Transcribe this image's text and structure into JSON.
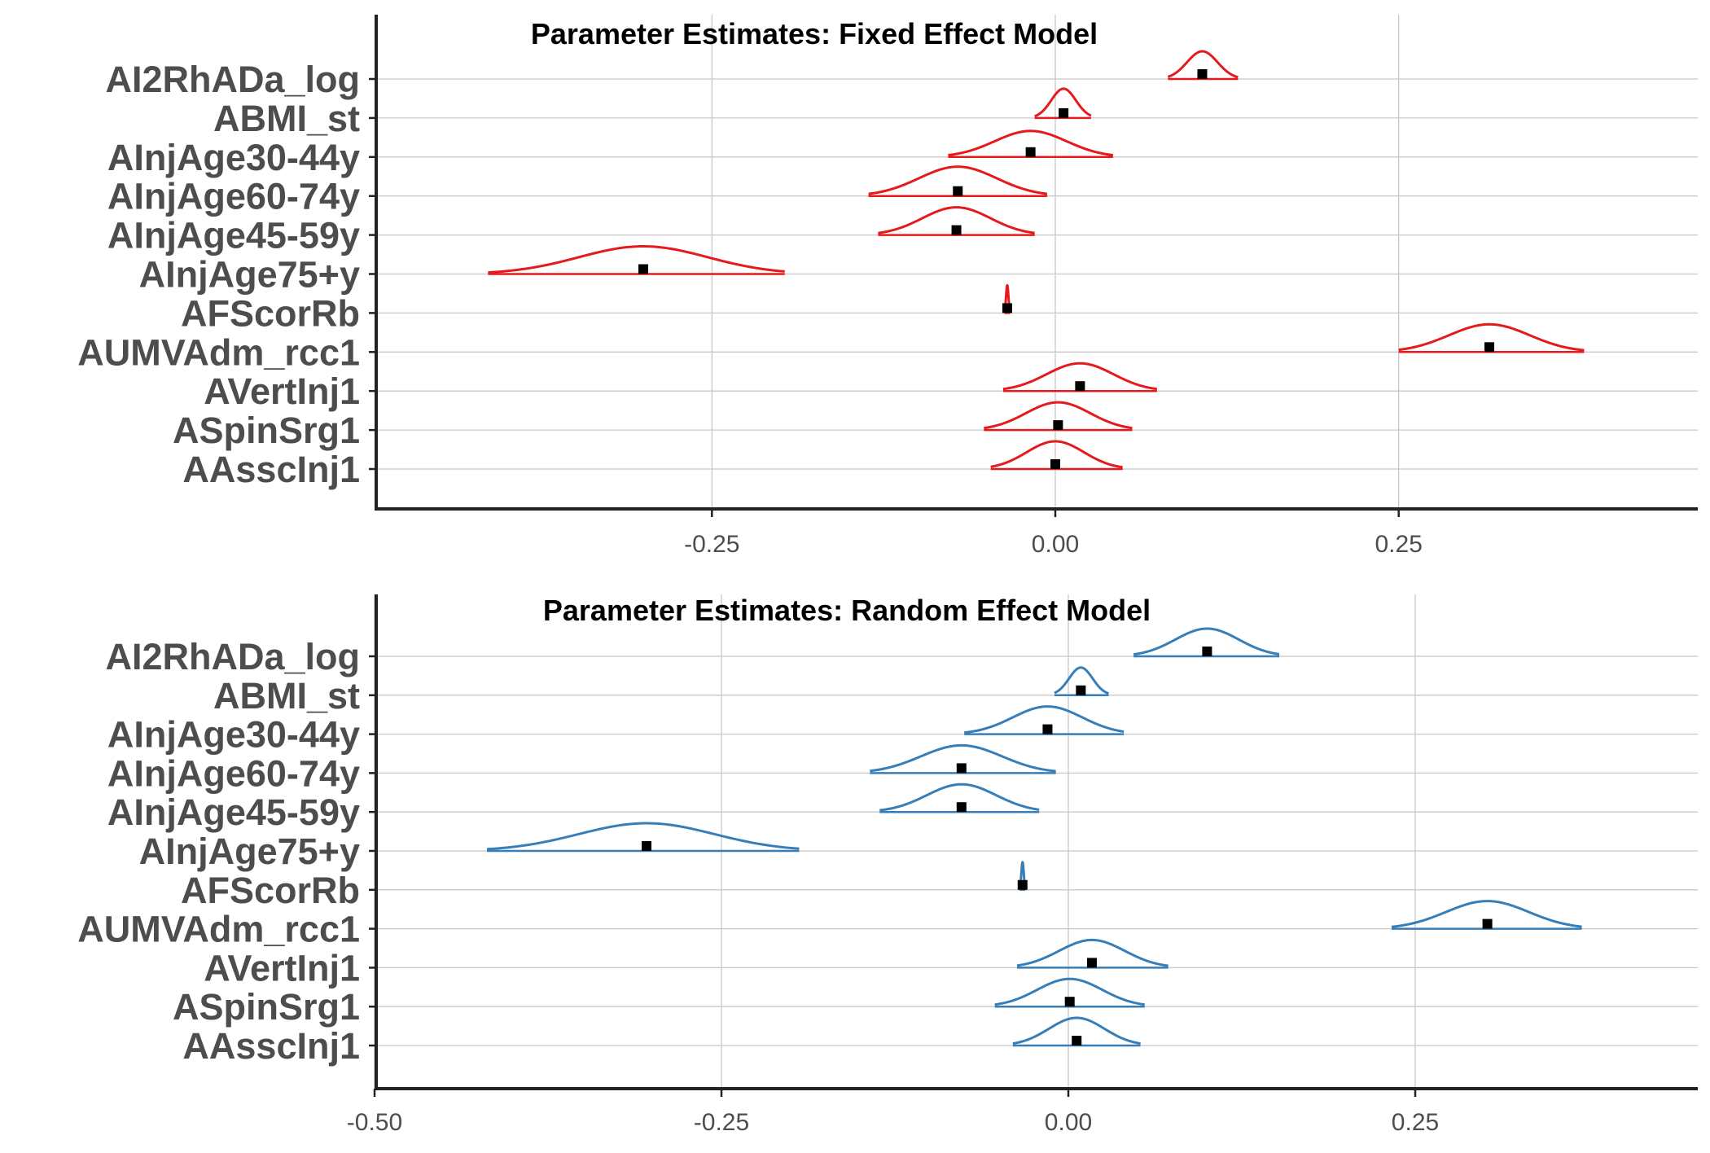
{
  "chart_data": [
    {
      "type": "ridgeline-density",
      "title": "Parameter Estimates: Fixed Effect Model",
      "color": "#E41A1C",
      "x_ticks": [
        "-0.25",
        "0.00",
        "0.25"
      ],
      "x_tick_values": [
        -0.25,
        0.0,
        0.25
      ],
      "xlim": [
        -0.5,
        0.47
      ],
      "grid": true,
      "parameters": [
        {
          "label": "AI2RhADa_log",
          "estimate": 0.107,
          "lo": 0.082,
          "hi": 0.133,
          "height": 0.85
        },
        {
          "label": "ABMI_st",
          "estimate": 0.006,
          "lo": -0.015,
          "hi": 0.026,
          "height": 0.9
        },
        {
          "label": "AInjAge30-44y",
          "estimate": -0.018,
          "lo": -0.078,
          "hi": 0.042,
          "height": 0.8
        },
        {
          "label": "AInjAge60-74y",
          "estimate": -0.071,
          "lo": -0.136,
          "hi": -0.006,
          "height": 0.9
        },
        {
          "label": "AInjAge45-59y",
          "estimate": -0.072,
          "lo": -0.129,
          "hi": -0.015,
          "height": 0.85
        },
        {
          "label": "AInjAge75+y",
          "estimate": -0.3,
          "lo": -0.413,
          "hi": -0.197,
          "height": 0.85
        },
        {
          "label": "AFScorRb",
          "estimate": -0.035,
          "lo": -0.037,
          "hi": -0.033,
          "height": 0.85
        },
        {
          "label": "AUMVAdm_rcc1",
          "estimate": 0.316,
          "lo": 0.25,
          "hi": 0.385,
          "height": 0.85
        },
        {
          "label": "AVertInj1",
          "estimate": 0.018,
          "lo": -0.038,
          "hi": 0.074,
          "height": 0.85
        },
        {
          "label": "ASpinSrg1",
          "estimate": 0.002,
          "lo": -0.052,
          "hi": 0.056,
          "height": 0.85
        },
        {
          "label": "AAsscInj1",
          "estimate": 0.0,
          "lo": -0.047,
          "hi": 0.049,
          "height": 0.85
        }
      ]
    },
    {
      "type": "ridgeline-density",
      "title": "Parameter Estimates: Random Effect Model",
      "color": "#377EB8",
      "x_ticks": [
        "-0.50",
        "-0.25",
        "0.00",
        "0.25"
      ],
      "x_tick_values": [
        -0.5,
        -0.25,
        0.0,
        0.25
      ],
      "xlim": [
        -0.5,
        0.45
      ],
      "grid": true,
      "parameters": [
        {
          "label": "AI2RhADa_log",
          "estimate": 0.1,
          "lo": 0.047,
          "hi": 0.152,
          "height": 0.85
        },
        {
          "label": "ABMI_st",
          "estimate": 0.009,
          "lo": -0.01,
          "hi": 0.029,
          "height": 0.85
        },
        {
          "label": "AInjAge30-44y",
          "estimate": -0.015,
          "lo": -0.075,
          "hi": 0.04,
          "height": 0.85
        },
        {
          "label": "AInjAge60-74y",
          "estimate": -0.077,
          "lo": -0.143,
          "hi": -0.009,
          "height": 0.85
        },
        {
          "label": "AInjAge45-59y",
          "estimate": -0.077,
          "lo": -0.136,
          "hi": -0.021,
          "height": 0.85
        },
        {
          "label": "AInjAge75+y",
          "estimate": -0.304,
          "lo": -0.419,
          "hi": -0.194,
          "height": 0.85
        },
        {
          "label": "AFScorRb",
          "estimate": -0.033,
          "lo": -0.035,
          "hi": -0.031,
          "height": 0.85
        },
        {
          "label": "AUMVAdm_rcc1",
          "estimate": 0.302,
          "lo": 0.233,
          "hi": 0.37,
          "height": 0.85
        },
        {
          "label": "AVertInj1",
          "estimate": 0.017,
          "lo": -0.037,
          "hi": 0.072,
          "height": 0.85
        },
        {
          "label": "ASpinSrg1",
          "estimate": 0.001,
          "lo": -0.053,
          "hi": 0.055,
          "height": 0.85
        },
        {
          "label": "AAsscInj1",
          "estimate": 0.006,
          "lo": -0.04,
          "hi": 0.052,
          "height": 0.85
        }
      ]
    }
  ]
}
